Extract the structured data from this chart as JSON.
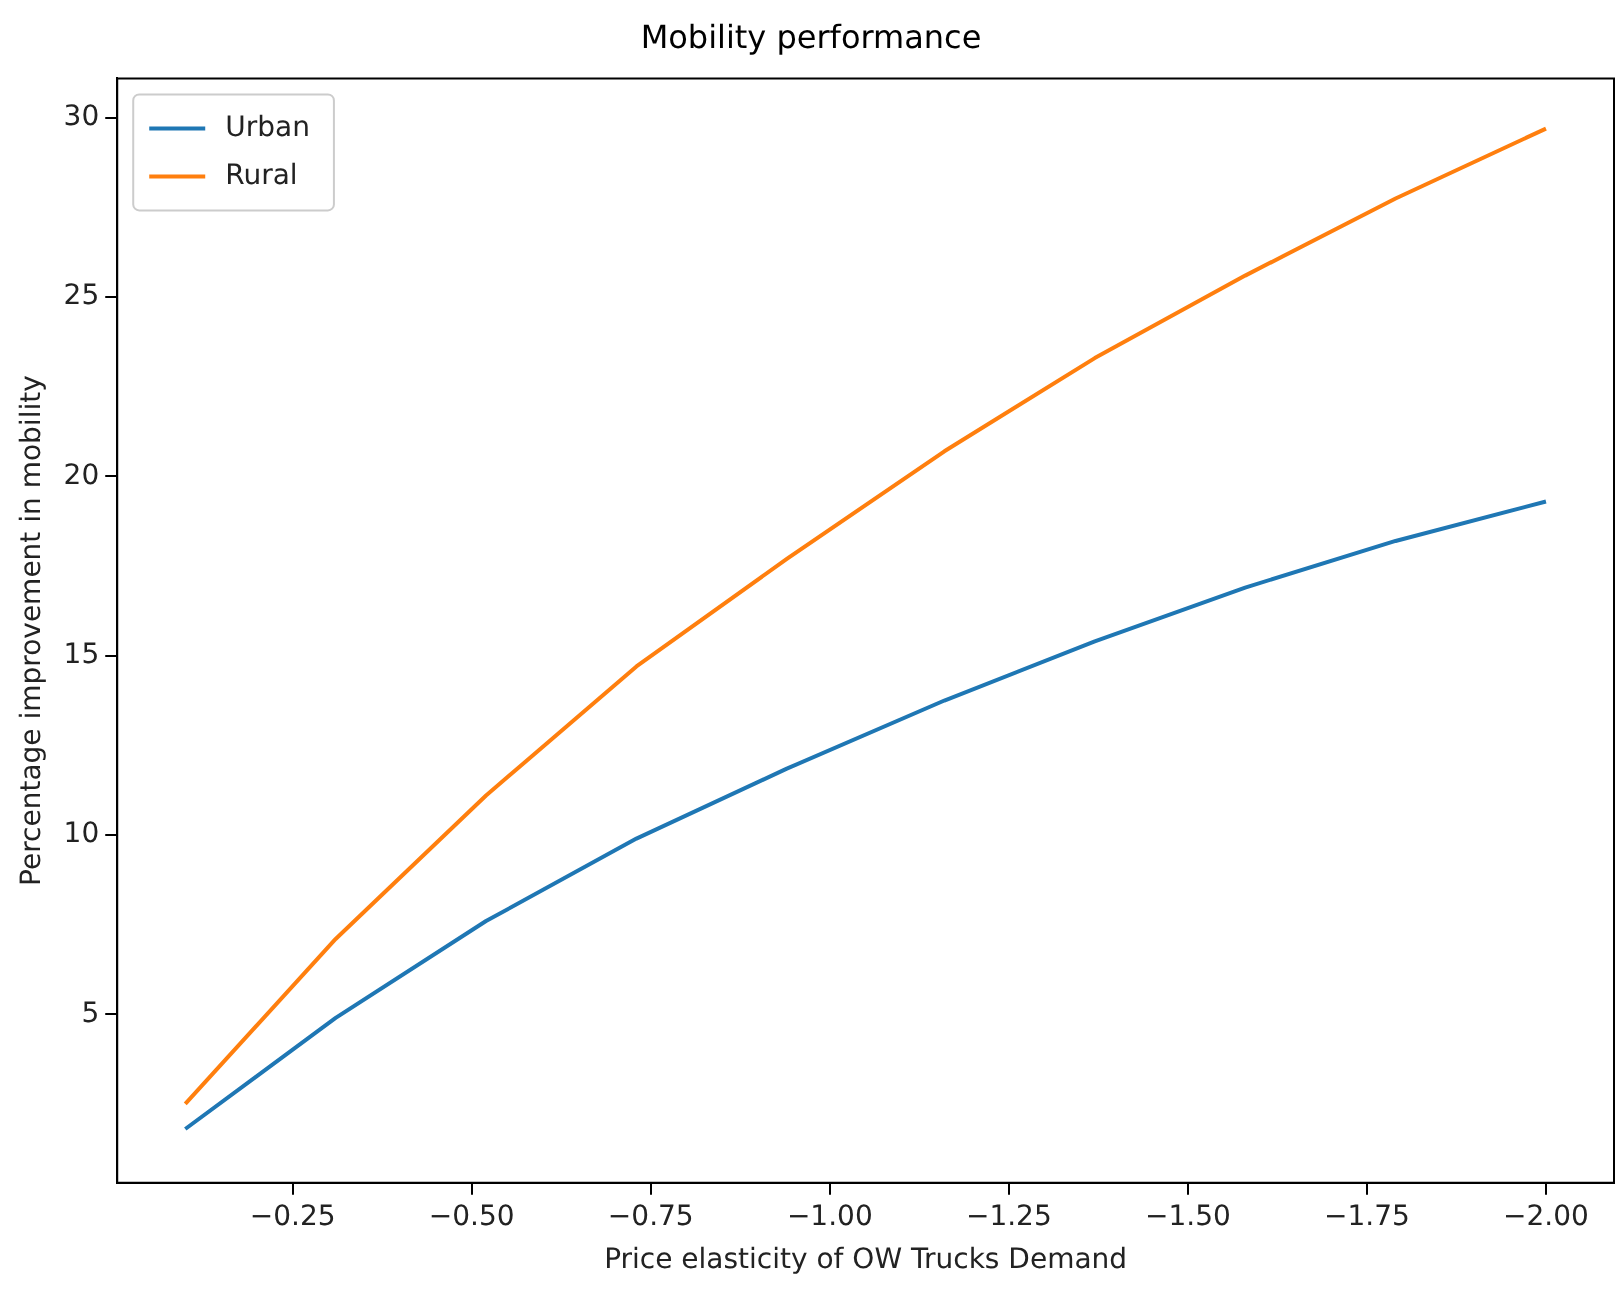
{
  "chart_data": {
    "type": "line",
    "title": "Mobility performance",
    "xlabel": "Price elasticity of OW Trucks Demand",
    "ylabel": "Percentage improvement in mobility",
    "x": [
      -0.1,
      -0.31,
      -0.52,
      -0.73,
      -0.94,
      -1.16,
      -1.37,
      -1.58,
      -1.79,
      -2.0
    ],
    "series": [
      {
        "name": "Urban",
        "color": "#1f77b4",
        "values": [
          1.8,
          4.9,
          7.6,
          9.9,
          11.85,
          13.75,
          15.4,
          16.9,
          18.2,
          19.3
        ]
      },
      {
        "name": "Rural",
        "color": "#ff7f0e",
        "values": [
          2.5,
          7.1,
          11.1,
          14.7,
          17.7,
          20.7,
          23.3,
          25.6,
          27.75,
          29.7
        ]
      }
    ],
    "xlim": [
      -0.005,
      -2.095
    ],
    "xticks": [
      {
        "value": -0.25,
        "label": "−0.25"
      },
      {
        "value": -0.5,
        "label": "−0.50"
      },
      {
        "value": -0.75,
        "label": "−0.75"
      },
      {
        "value": -1.0,
        "label": "−1.00"
      },
      {
        "value": -1.25,
        "label": "−1.25"
      },
      {
        "value": -1.5,
        "label": "−1.50"
      },
      {
        "value": -1.75,
        "label": "−1.75"
      },
      {
        "value": -2.0,
        "label": "−2.00"
      }
    ],
    "ylim": [
      0.3,
      31.1
    ],
    "yticks": [
      5,
      10,
      15,
      20,
      25,
      30
    ],
    "grid": false,
    "legend": "top left",
    "marker": "none",
    "line_style": "solid"
  }
}
